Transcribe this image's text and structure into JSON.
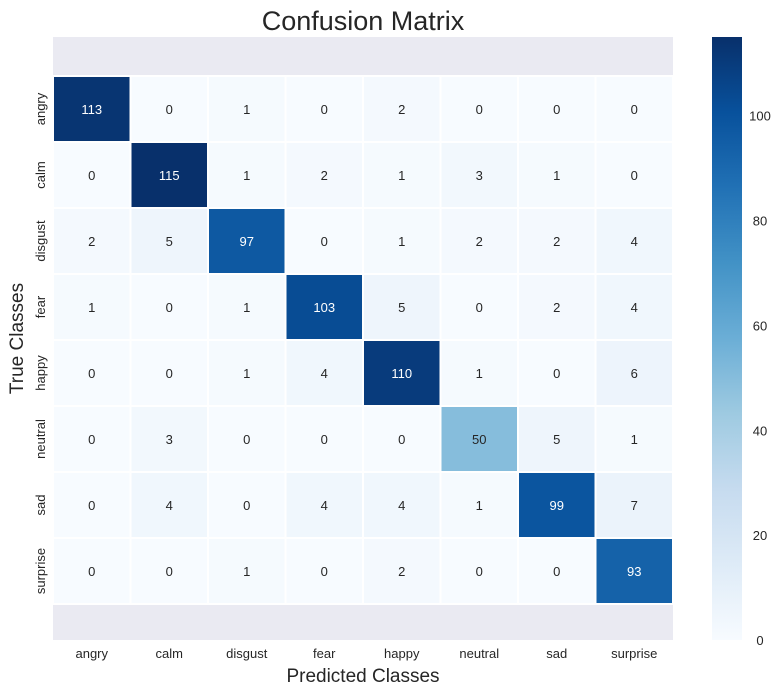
{
  "chart_data": {
    "type": "heatmap",
    "title": "Confusion Matrix",
    "xlabel": "Predicted Classes",
    "ylabel": "True Classes",
    "x_categories": [
      "angry",
      "calm",
      "disgust",
      "fear",
      "happy",
      "neutral",
      "sad",
      "surprise"
    ],
    "y_categories": [
      "angry",
      "calm",
      "disgust",
      "fear",
      "happy",
      "neutral",
      "sad",
      "surprise"
    ],
    "values": [
      [
        113,
        0,
        1,
        0,
        2,
        0,
        0,
        0
      ],
      [
        0,
        115,
        1,
        2,
        1,
        3,
        1,
        0
      ],
      [
        2,
        5,
        97,
        0,
        1,
        2,
        2,
        4
      ],
      [
        1,
        0,
        1,
        103,
        5,
        0,
        2,
        4
      ],
      [
        0,
        0,
        1,
        4,
        110,
        1,
        0,
        6
      ],
      [
        0,
        3,
        0,
        0,
        0,
        50,
        5,
        1
      ],
      [
        0,
        4,
        0,
        4,
        4,
        1,
        99,
        7
      ],
      [
        0,
        0,
        1,
        0,
        2,
        0,
        0,
        93
      ]
    ],
    "colormap": "Blues",
    "vmin": 0,
    "vmax": 115,
    "colorbar_ticks": [
      0,
      20,
      40,
      60,
      80,
      100
    ],
    "annotated": true,
    "colors": {
      "background_band": "#eaeaf2",
      "cell_border": "#ffffff",
      "text_dark": "#262626",
      "text_light": "#ffffff"
    }
  }
}
